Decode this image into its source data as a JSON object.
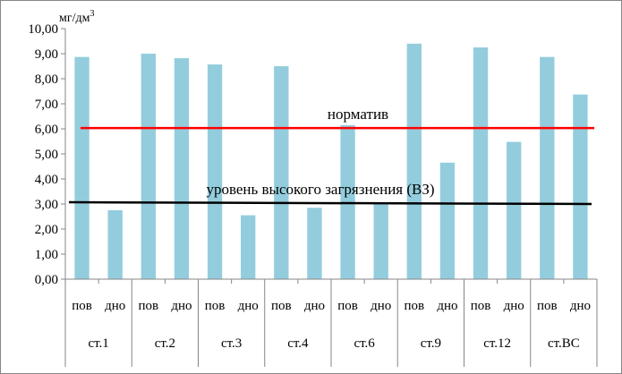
{
  "chart_data": {
    "type": "bar",
    "unit_label": "мг/дм",
    "unit_superscript": "3",
    "ylim": [
      0,
      10
    ],
    "y_ticks": [
      "0,00",
      "1,00",
      "2,00",
      "3,00",
      "4,00",
      "5,00",
      "6,00",
      "7,00",
      "8,00",
      "9,00",
      "10,00"
    ],
    "grid": false,
    "bar_color": "#93CDDD",
    "groups": [
      {
        "name": "ст.1",
        "subcategories": [
          "пов",
          "дно"
        ],
        "values": [
          8.87,
          2.75
        ]
      },
      {
        "name": "ст.2",
        "subcategories": [
          "пов",
          "дно"
        ],
        "values": [
          9.0,
          8.82
        ]
      },
      {
        "name": "ст.3",
        "subcategories": [
          "пов",
          "дно"
        ],
        "values": [
          8.57,
          2.55
        ]
      },
      {
        "name": "ст.4",
        "subcategories": [
          "пов",
          "дно"
        ],
        "values": [
          8.5,
          2.85
        ]
      },
      {
        "name": "ст.6",
        "subcategories": [
          "пов",
          "дно"
        ],
        "values": [
          6.15,
          3.0
        ]
      },
      {
        "name": "ст.9",
        "subcategories": [
          "пов",
          "дно"
        ],
        "values": [
          9.4,
          4.65
        ]
      },
      {
        "name": "ст.12",
        "subcategories": [
          "пов",
          "дно"
        ],
        "values": [
          9.25,
          5.48
        ]
      },
      {
        "name": "ст.ВС",
        "subcategories": [
          "пов",
          "дно"
        ],
        "values": [
          8.87,
          7.37
        ]
      }
    ],
    "reference_lines": [
      {
        "label": "норматив",
        "value": 6.03,
        "color": "#FF0000"
      },
      {
        "label": "уровень высокого загрязнения (ВЗ)",
        "value_start": 3.07,
        "value_end": 3.0,
        "color": "#000000"
      }
    ]
  }
}
